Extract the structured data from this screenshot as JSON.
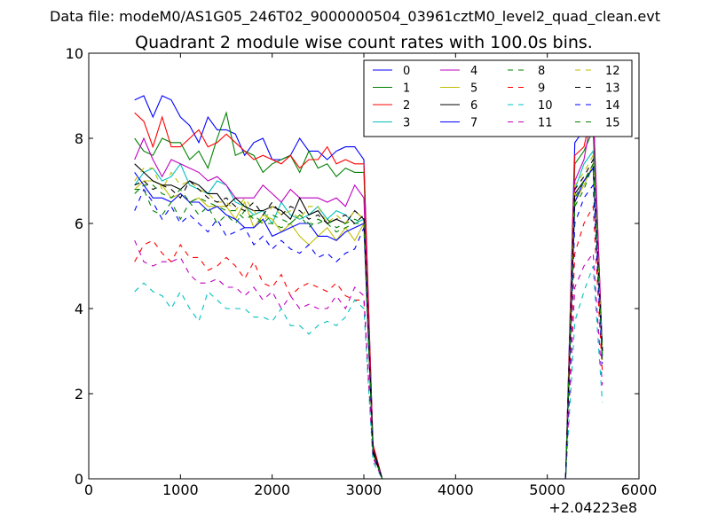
{
  "figure": {
    "suptitle": "Data file: modeM0/AS1G05_246T02_9000000504_03961cztM0_level2_quad_clean.evt"
  },
  "chart_data": {
    "type": "line",
    "title": "Quadrant 2 module wise count rates with 100.0s bins.",
    "xlabel": "",
    "ylabel": "",
    "x_offset_label": "+2.04223e8",
    "xlim": [
      0,
      6000
    ],
    "ylim": [
      0,
      10
    ],
    "xticks": [
      0,
      1000,
      2000,
      3000,
      4000,
      5000,
      6000
    ],
    "yticks": [
      0,
      2,
      4,
      6,
      8,
      10
    ],
    "grid": false,
    "legend_position": "top-right",
    "legend_columns": 4,
    "x": [
      500,
      600,
      700,
      800,
      900,
      1000,
      1100,
      1200,
      1300,
      1400,
      1500,
      1600,
      1700,
      1800,
      1900,
      2000,
      2100,
      2200,
      2300,
      2400,
      2500,
      2600,
      2700,
      2800,
      2900,
      3000,
      3100,
      3200,
      5200,
      5300,
      5400,
      5500,
      5600
    ],
    "series": [
      {
        "name": "0",
        "color": "#0000ff",
        "dash": "solid",
        "values": [
          8.9,
          9.0,
          8.5,
          9.0,
          8.9,
          8.5,
          8.3,
          7.9,
          8.5,
          8.2,
          8.2,
          8.1,
          7.6,
          7.9,
          8.0,
          7.5,
          7.5,
          7.6,
          8.0,
          7.7,
          7.7,
          7.5,
          7.7,
          7.8,
          7.8,
          7.5,
          0.8,
          0,
          0,
          7.9,
          8.2,
          8.5,
          3.0
        ]
      },
      {
        "name": "1",
        "color": "#008000",
        "dash": "solid",
        "values": [
          8.0,
          7.7,
          7.6,
          8.0,
          7.9,
          7.9,
          7.5,
          7.7,
          7.3,
          8.0,
          8.6,
          7.6,
          7.7,
          7.6,
          7.2,
          7.4,
          7.5,
          7.6,
          7.2,
          7.7,
          7.3,
          7.4,
          7.1,
          7.3,
          7.2,
          7.2,
          0.7,
          0,
          0,
          7.4,
          7.7,
          8.2,
          2.8
        ]
      },
      {
        "name": "2",
        "color": "#ff0000",
        "dash": "solid",
        "values": [
          8.6,
          8.4,
          7.8,
          8.5,
          7.8,
          7.8,
          8.0,
          8.2,
          7.8,
          7.9,
          8.1,
          7.9,
          7.7,
          7.5,
          7.6,
          7.5,
          7.4,
          7.6,
          7.3,
          7.5,
          7.5,
          7.8,
          7.4,
          7.5,
          7.4,
          7.4,
          0.8,
          0,
          0,
          7.6,
          7.8,
          8.8,
          3.0
        ]
      },
      {
        "name": "3",
        "color": "#00bfbf",
        "dash": "solid",
        "values": [
          6.9,
          7.2,
          7.3,
          7.0,
          7.1,
          7.4,
          6.9,
          6.8,
          6.7,
          7.0,
          6.9,
          6.5,
          6.4,
          6.2,
          6.3,
          6.0,
          6.5,
          6.2,
          6.1,
          6.2,
          6.4,
          6.1,
          6.3,
          6.2,
          6.0,
          6.1,
          0.6,
          0,
          0,
          6.8,
          7.4,
          7.7,
          3.2
        ]
      },
      {
        "name": "4",
        "color": "#bf00bf",
        "dash": "solid",
        "values": [
          7.5,
          8.0,
          7.5,
          7.1,
          7.5,
          7.4,
          7.3,
          7.2,
          7.0,
          7.1,
          6.9,
          6.6,
          6.6,
          6.6,
          6.9,
          6.7,
          6.5,
          6.8,
          6.6,
          6.6,
          6.6,
          6.5,
          6.6,
          6.4,
          6.9,
          6.6,
          0.7,
          0,
          0,
          7.0,
          7.5,
          8.7,
          3.0
        ]
      },
      {
        "name": "5",
        "color": "#bfbf00",
        "dash": "solid",
        "values": [
          6.8,
          7.0,
          7.0,
          6.9,
          6.6,
          6.7,
          6.5,
          6.6,
          6.4,
          6.4,
          6.4,
          6.1,
          6.5,
          5.9,
          6.2,
          6.1,
          5.8,
          6.0,
          5.7,
          5.5,
          5.7,
          5.9,
          5.6,
          5.9,
          5.6,
          6.0,
          0.6,
          0,
          0,
          6.5,
          6.9,
          7.4,
          2.9
        ]
      },
      {
        "name": "6",
        "color": "#000000",
        "dash": "solid",
        "values": [
          7.4,
          7.2,
          7.0,
          6.9,
          6.9,
          6.8,
          7.0,
          6.9,
          6.7,
          6.7,
          6.4,
          6.6,
          6.4,
          6.3,
          6.3,
          6.4,
          6.3,
          6.1,
          6.6,
          6.2,
          6.3,
          6.0,
          6.1,
          6.0,
          6.3,
          6.1,
          0.7,
          0,
          0,
          6.7,
          7.0,
          7.3,
          3.0
        ]
      },
      {
        "name": "7",
        "color": "#0000ff",
        "dash": "solid",
        "values": [
          7.2,
          6.9,
          6.6,
          6.6,
          6.5,
          6.7,
          6.5,
          6.5,
          6.3,
          6.4,
          6.2,
          6.1,
          5.9,
          5.9,
          6.1,
          5.7,
          5.8,
          5.9,
          6.0,
          6.0,
          5.7,
          5.7,
          5.6,
          5.8,
          5.9,
          6.0,
          0.6,
          0,
          0,
          6.5,
          7.0,
          7.3,
          2.9
        ]
      },
      {
        "name": "8",
        "color": "#008000",
        "dash": "dashed",
        "values": [
          6.8,
          6.8,
          6.3,
          6.2,
          6.5,
          6.1,
          6.5,
          6.2,
          6.4,
          6.0,
          6.2,
          6.0,
          6.3,
          6.1,
          6.0,
          6.0,
          5.9,
          6.0,
          6.2,
          5.9,
          6.1,
          6.0,
          5.8,
          5.9,
          6.0,
          6.0,
          0.6,
          0,
          0,
          6.4,
          6.8,
          7.4,
          2.8
        ]
      },
      {
        "name": "9",
        "color": "#ff0000",
        "dash": "dashed",
        "values": [
          5.1,
          5.5,
          5.6,
          5.3,
          5.1,
          5.5,
          5.2,
          5.2,
          4.9,
          5.0,
          5.2,
          5.0,
          4.7,
          5.1,
          4.6,
          4.5,
          4.8,
          4.3,
          4.5,
          4.6,
          4.5,
          4.4,
          4.6,
          4.3,
          4.2,
          4.2,
          0.5,
          0,
          0,
          5.3,
          6.0,
          6.4,
          2.5
        ]
      },
      {
        "name": "10",
        "color": "#00bfbf",
        "dash": "dashed",
        "values": [
          4.4,
          4.6,
          4.4,
          4.3,
          4.0,
          4.4,
          4.0,
          3.7,
          4.4,
          4.2,
          4.0,
          4.0,
          4.0,
          3.8,
          3.8,
          3.7,
          4.0,
          3.6,
          3.6,
          3.4,
          3.6,
          3.7,
          3.6,
          3.8,
          4.2,
          4.0,
          0.4,
          0,
          0,
          3.7,
          4.4,
          5.0,
          1.8
        ]
      },
      {
        "name": "11",
        "color": "#bf00bf",
        "dash": "dashed",
        "values": [
          5.6,
          5.1,
          5.0,
          5.1,
          5.1,
          5.2,
          4.8,
          4.6,
          4.6,
          4.7,
          4.5,
          4.5,
          4.3,
          4.5,
          4.2,
          4.4,
          4.0,
          4.3,
          4.0,
          4.1,
          4.0,
          4.0,
          4.3,
          4.0,
          4.5,
          4.3,
          0.5,
          0,
          0,
          4.5,
          5.0,
          5.3,
          2.2
        ]
      },
      {
        "name": "12",
        "color": "#bfbf00",
        "dash": "dashed",
        "values": [
          7.0,
          7.3,
          7.3,
          6.8,
          7.2,
          6.9,
          7.0,
          6.8,
          6.7,
          6.5,
          6.5,
          6.3,
          6.6,
          6.3,
          6.0,
          6.4,
          6.2,
          6.3,
          6.1,
          6.4,
          6.4,
          6.0,
          6.2,
          6.0,
          6.3,
          6.1,
          0.6,
          0,
          0,
          6.9,
          7.2,
          7.6,
          3.0
        ]
      },
      {
        "name": "13",
        "color": "#000000",
        "dash": "dashed",
        "values": [
          6.9,
          7.0,
          6.8,
          6.9,
          6.8,
          6.6,
          7.0,
          6.8,
          6.6,
          6.5,
          6.6,
          6.4,
          6.3,
          6.5,
          6.2,
          6.5,
          6.2,
          6.4,
          6.3,
          6.1,
          6.2,
          6.0,
          6.1,
          6.2,
          6.0,
          6.2,
          0.6,
          0,
          0,
          6.8,
          7.1,
          7.5,
          3.0
        ]
      },
      {
        "name": "14",
        "color": "#0000ff",
        "dash": "dashed",
        "values": [
          6.3,
          6.8,
          6.5,
          6.1,
          6.4,
          6.0,
          6.2,
          6.0,
          5.8,
          6.1,
          5.7,
          5.8,
          5.9,
          5.5,
          5.7,
          5.4,
          5.6,
          5.4,
          5.3,
          5.5,
          5.2,
          5.3,
          5.1,
          5.3,
          5.4,
          5.9,
          0.6,
          0,
          0,
          6.0,
          6.6,
          6.9,
          2.7
        ]
      },
      {
        "name": "15",
        "color": "#008000",
        "dash": "dashed",
        "values": [
          6.7,
          6.9,
          6.9,
          6.7,
          6.6,
          6.8,
          6.5,
          6.6,
          6.5,
          6.4,
          6.3,
          6.3,
          6.1,
          6.2,
          6.0,
          6.2,
          6.1,
          6.0,
          6.2,
          6.0,
          6.0,
          6.1,
          5.9,
          6.0,
          6.1,
          6.0,
          0.6,
          0,
          0,
          6.6,
          7.0,
          7.4,
          2.9
        ]
      }
    ]
  }
}
